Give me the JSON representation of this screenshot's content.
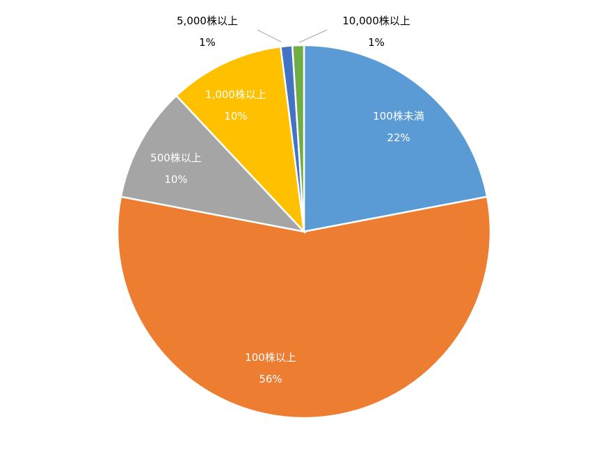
{
  "chart_data": {
    "type": "pie",
    "categories": [
      "100株未満",
      "100株以上",
      "500株以上",
      "1,000株以上",
      "5,000株以上",
      "10,000株以上"
    ],
    "values": [
      22,
      56,
      10,
      10,
      1,
      1
    ],
    "percent_labels": [
      "22%",
      "56%",
      "10%",
      "10%",
      "1%",
      "1%"
    ],
    "colors": [
      "#5b9bd5",
      "#ed7d31",
      "#a5a5a5",
      "#ffc000",
      "#4472c4",
      "#70ad47"
    ],
    "label_colors": [
      "#ffffff",
      "#ffffff",
      "#ffffff",
      "#ffffff",
      "#000000",
      "#000000"
    ],
    "start_angle_deg": 0,
    "direction": "clockwise",
    "legend": "none"
  }
}
